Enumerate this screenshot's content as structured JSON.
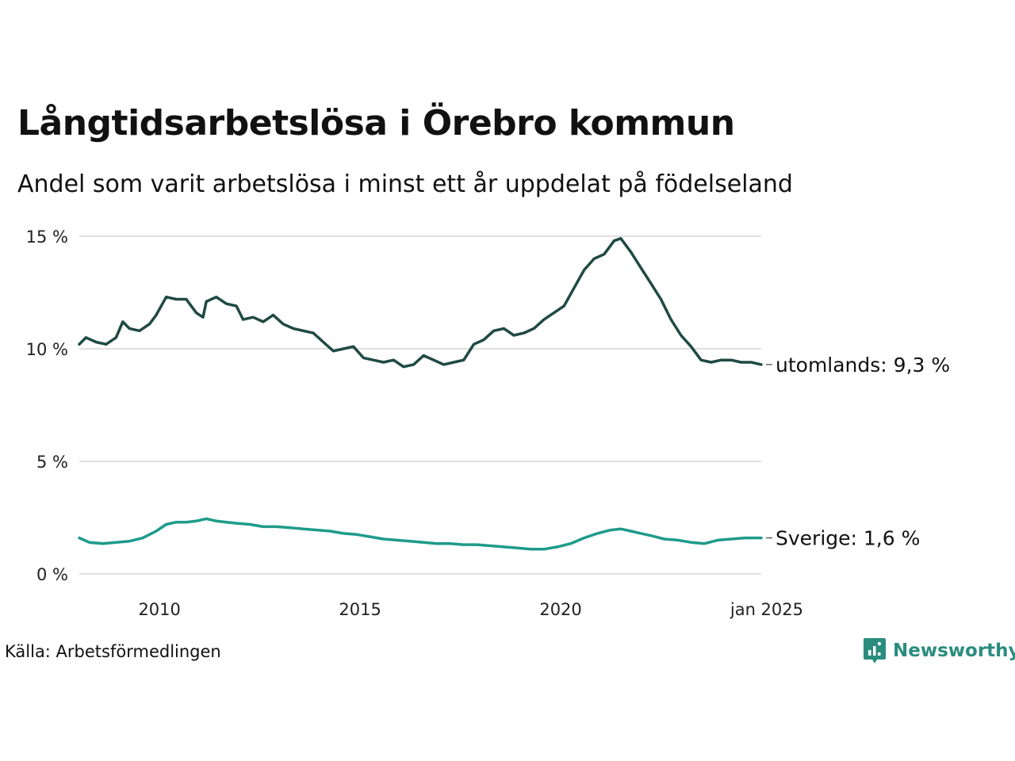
{
  "title": "Långtidsarbetslösa i Örebro kommun",
  "subtitle": "Andel som varit arbetslösa i minst ett år uppdelat på födelseland",
  "source": "Källa: Arbetsförmedlingen",
  "brand": {
    "name": "Newsworthy",
    "icon": "newsworthy-logo-icon",
    "color": "#2a8c7e"
  },
  "chart_data": {
    "type": "line",
    "title": "Långtidsarbetslösa i Örebro kommun",
    "subtitle": "Andel som varit arbetslösa i minst ett år uppdelat på födelseland",
    "xlabel": "",
    "ylabel": "",
    "xlim": [
      "2008-01",
      "2025-01"
    ],
    "ylim": [
      0,
      15
    ],
    "y_ticks": [
      0,
      5,
      10,
      15
    ],
    "y_tick_labels": [
      "0 %",
      "5 %",
      "10 %",
      "15 %"
    ],
    "x_ticks": [
      "2010-01",
      "2015-01",
      "2020-01",
      "2025-01"
    ],
    "x_tick_labels": [
      "2010",
      "2015",
      "2020",
      "jan 2025"
    ],
    "grid": "horizontal",
    "legend": "direct labels at right end of lines",
    "series": [
      {
        "name": "utomlands",
        "end_label": "utomlands: 9,3 %",
        "color": "#1f4a43",
        "points": [
          [
            "2008-01",
            10.2
          ],
          [
            "2008-03",
            10.5
          ],
          [
            "2008-06",
            10.3
          ],
          [
            "2008-09",
            10.2
          ],
          [
            "2008-12",
            10.5
          ],
          [
            "2009-02",
            11.2
          ],
          [
            "2009-04",
            10.9
          ],
          [
            "2009-07",
            10.8
          ],
          [
            "2009-10",
            11.1
          ],
          [
            "2009-12",
            11.5
          ],
          [
            "2010-03",
            12.3
          ],
          [
            "2010-06",
            12.2
          ],
          [
            "2010-09",
            12.2
          ],
          [
            "2010-12",
            11.6
          ],
          [
            "2011-02",
            11.4
          ],
          [
            "2011-03",
            12.1
          ],
          [
            "2011-06",
            12.3
          ],
          [
            "2011-09",
            12.0
          ],
          [
            "2011-12",
            11.9
          ],
          [
            "2012-02",
            11.3
          ],
          [
            "2012-05",
            11.4
          ],
          [
            "2012-08",
            11.2
          ],
          [
            "2012-11",
            11.5
          ],
          [
            "2013-02",
            11.1
          ],
          [
            "2013-05",
            10.9
          ],
          [
            "2013-08",
            10.8
          ],
          [
            "2013-11",
            10.7
          ],
          [
            "2014-02",
            10.3
          ],
          [
            "2014-05",
            9.9
          ],
          [
            "2014-08",
            10.0
          ],
          [
            "2014-11",
            10.1
          ],
          [
            "2015-02",
            9.6
          ],
          [
            "2015-05",
            9.5
          ],
          [
            "2015-08",
            9.4
          ],
          [
            "2015-11",
            9.5
          ],
          [
            "2016-02",
            9.2
          ],
          [
            "2016-05",
            9.3
          ],
          [
            "2016-08",
            9.7
          ],
          [
            "2016-11",
            9.5
          ],
          [
            "2017-02",
            9.3
          ],
          [
            "2017-05",
            9.4
          ],
          [
            "2017-08",
            9.5
          ],
          [
            "2017-11",
            10.2
          ],
          [
            "2018-02",
            10.4
          ],
          [
            "2018-05",
            10.8
          ],
          [
            "2018-08",
            10.9
          ],
          [
            "2018-11",
            10.6
          ],
          [
            "2019-02",
            10.7
          ],
          [
            "2019-05",
            10.9
          ],
          [
            "2019-08",
            11.3
          ],
          [
            "2019-11",
            11.6
          ],
          [
            "2020-02",
            11.9
          ],
          [
            "2020-05",
            12.7
          ],
          [
            "2020-08",
            13.5
          ],
          [
            "2020-11",
            14.0
          ],
          [
            "2021-02",
            14.2
          ],
          [
            "2021-05",
            14.8
          ],
          [
            "2021-07",
            14.9
          ],
          [
            "2021-10",
            14.3
          ],
          [
            "2022-01",
            13.6
          ],
          [
            "2022-04",
            12.9
          ],
          [
            "2022-07",
            12.2
          ],
          [
            "2022-10",
            11.3
          ],
          [
            "2023-01",
            10.6
          ],
          [
            "2023-04",
            10.1
          ],
          [
            "2023-07",
            9.5
          ],
          [
            "2023-10",
            9.4
          ],
          [
            "2024-01",
            9.5
          ],
          [
            "2024-04",
            9.5
          ],
          [
            "2024-07",
            9.4
          ],
          [
            "2024-10",
            9.4
          ],
          [
            "2025-01",
            9.3
          ]
        ]
      },
      {
        "name": "Sverige",
        "end_label": "Sverige: 1,6 %",
        "color": "#1e9b8a",
        "points": [
          [
            "2008-01",
            1.6
          ],
          [
            "2008-04",
            1.4
          ],
          [
            "2008-08",
            1.35
          ],
          [
            "2008-12",
            1.4
          ],
          [
            "2009-04",
            1.45
          ],
          [
            "2009-08",
            1.6
          ],
          [
            "2009-12",
            1.9
          ],
          [
            "2010-03",
            2.2
          ],
          [
            "2010-06",
            2.3
          ],
          [
            "2010-09",
            2.3
          ],
          [
            "2010-12",
            2.35
          ],
          [
            "2011-03",
            2.45
          ],
          [
            "2011-06",
            2.35
          ],
          [
            "2011-09",
            2.3
          ],
          [
            "2011-12",
            2.25
          ],
          [
            "2012-04",
            2.2
          ],
          [
            "2012-08",
            2.1
          ],
          [
            "2012-12",
            2.1
          ],
          [
            "2013-04",
            2.05
          ],
          [
            "2013-08",
            2.0
          ],
          [
            "2013-12",
            1.95
          ],
          [
            "2014-04",
            1.9
          ],
          [
            "2014-08",
            1.8
          ],
          [
            "2014-12",
            1.75
          ],
          [
            "2015-04",
            1.65
          ],
          [
            "2015-08",
            1.55
          ],
          [
            "2015-12",
            1.5
          ],
          [
            "2016-04",
            1.45
          ],
          [
            "2016-08",
            1.4
          ],
          [
            "2016-12",
            1.35
          ],
          [
            "2017-04",
            1.35
          ],
          [
            "2017-08",
            1.3
          ],
          [
            "2017-12",
            1.3
          ],
          [
            "2018-04",
            1.25
          ],
          [
            "2018-08",
            1.2
          ],
          [
            "2018-12",
            1.15
          ],
          [
            "2019-04",
            1.1
          ],
          [
            "2019-08",
            1.1
          ],
          [
            "2019-12",
            1.2
          ],
          [
            "2020-04",
            1.35
          ],
          [
            "2020-08",
            1.6
          ],
          [
            "2020-12",
            1.8
          ],
          [
            "2021-04",
            1.95
          ],
          [
            "2021-07",
            2.0
          ],
          [
            "2021-10",
            1.9
          ],
          [
            "2022-01",
            1.8
          ],
          [
            "2022-04",
            1.7
          ],
          [
            "2022-08",
            1.55
          ],
          [
            "2022-12",
            1.5
          ],
          [
            "2023-04",
            1.4
          ],
          [
            "2023-08",
            1.35
          ],
          [
            "2023-12",
            1.5
          ],
          [
            "2024-04",
            1.55
          ],
          [
            "2024-08",
            1.6
          ],
          [
            "2025-01",
            1.6
          ]
        ]
      }
    ]
  }
}
